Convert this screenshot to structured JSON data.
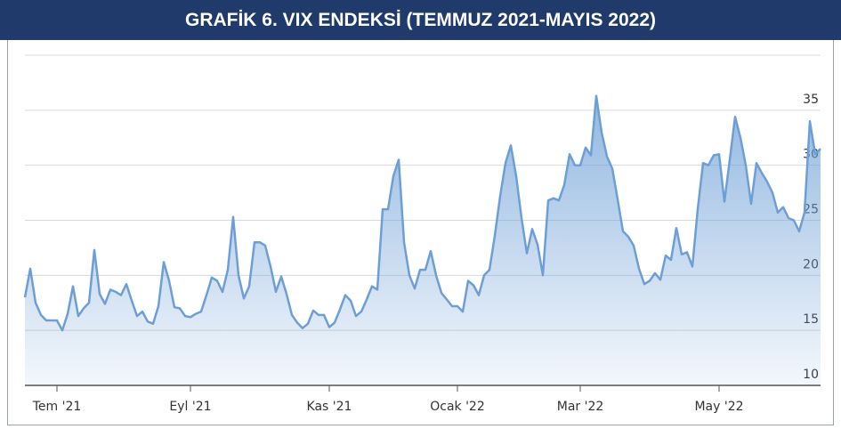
{
  "chart_data": {
    "type": "area",
    "title": "GRAFİK 6. VIX ENDEKSİ (TEMMUZ 2021-MAYIS 2022)",
    "categories": [
      null,
      null,
      null,
      null,
      null,
      null,
      "Tem '21",
      null,
      null,
      null,
      null,
      null,
      null,
      null,
      null,
      null,
      null,
      null,
      null,
      null,
      null,
      null,
      null,
      null,
      null,
      null,
      null,
      null,
      null,
      null,
      null,
      "Eyl '21",
      null,
      null,
      null,
      null,
      null,
      null,
      null,
      null,
      null,
      null,
      null,
      null,
      null,
      null,
      null,
      null,
      null,
      null,
      null,
      null,
      null,
      null,
      null,
      null,
      null,
      "Kas '21",
      null,
      null,
      null,
      null,
      null,
      null,
      null,
      null,
      null,
      null,
      null,
      null,
      null,
      null,
      null,
      null,
      null,
      null,
      null,
      null,
      null,
      null,
      null,
      "Ocak '22",
      null,
      null,
      null,
      null,
      null,
      null,
      null,
      null,
      null,
      null,
      null,
      null,
      null,
      null,
      null,
      null,
      null,
      null,
      null,
      null,
      null,
      null,
      "Mar '22",
      null,
      null,
      null,
      null,
      null,
      null,
      null,
      null,
      null,
      null,
      null,
      null,
      null,
      null,
      null,
      null,
      null,
      null,
      null,
      null,
      null,
      null,
      null,
      null,
      null,
      "May '22",
      null,
      null,
      null,
      null,
      null,
      null,
      null,
      null,
      null,
      null,
      null,
      null,
      null,
      null,
      null,
      null,
      null,
      null,
      null
    ],
    "values": [
      18,
      20.6,
      17.5,
      16.4,
      15.9,
      15.9,
      15.9,
      15,
      16.5,
      19,
      16.3,
      17,
      17.5,
      22.3,
      18.3,
      17.4,
      18.7,
      18.5,
      18.2,
      19.2,
      17.7,
      16.3,
      16.7,
      15.8,
      15.6,
      17.2,
      21.2,
      19.5,
      17.1,
      17,
      16.3,
      16.2,
      16.5,
      16.7,
      18.2,
      19.8,
      19.5,
      18.5,
      20.5,
      25.3,
      20,
      17.9,
      19,
      23,
      23,
      22.7,
      20.8,
      18.5,
      19.9,
      18.3,
      16.4,
      15.7,
      15.2,
      15.6,
      16.8,
      16.4,
      16.4,
      15.3,
      15.7,
      16.9,
      18.2,
      17.7,
      16.3,
      16.7,
      17.8,
      19,
      18.7,
      26,
      26,
      29,
      30.5,
      23,
      20,
      18.8,
      20.5,
      20.5,
      22.2,
      20,
      18.4,
      17.8,
      17.2,
      17.2,
      16.7,
      19.5,
      19.1,
      18.2,
      20,
      20.5,
      23.6,
      27.2,
      30.2,
      31.8,
      29,
      25.2,
      22,
      24.2,
      22.8,
      20,
      26.8,
      27,
      26.8,
      28.2,
      31,
      30,
      30,
      31.6,
      30.9,
      36.3,
      33,
      30.8,
      29.7,
      26.9,
      24,
      23.5,
      22.7,
      20.6,
      19.2,
      19.5,
      20.2,
      19.6,
      21.8,
      21.4,
      24.3,
      21.9,
      22.1,
      20.8,
      26,
      30.2,
      30,
      30.9,
      31,
      26.7,
      30.5,
      34.4,
      32.5,
      30,
      26.5,
      30.2,
      29.3,
      28.5,
      27.5,
      25.7,
      26.2,
      25.2,
      25,
      24,
      25.7,
      34,
      31,
      31.5
    ],
    "color": "#6d9fd6",
    "ylim": [
      10,
      40
    ],
    "yticks": [
      10,
      15,
      20,
      25,
      30,
      35
    ],
    "grid": true
  }
}
